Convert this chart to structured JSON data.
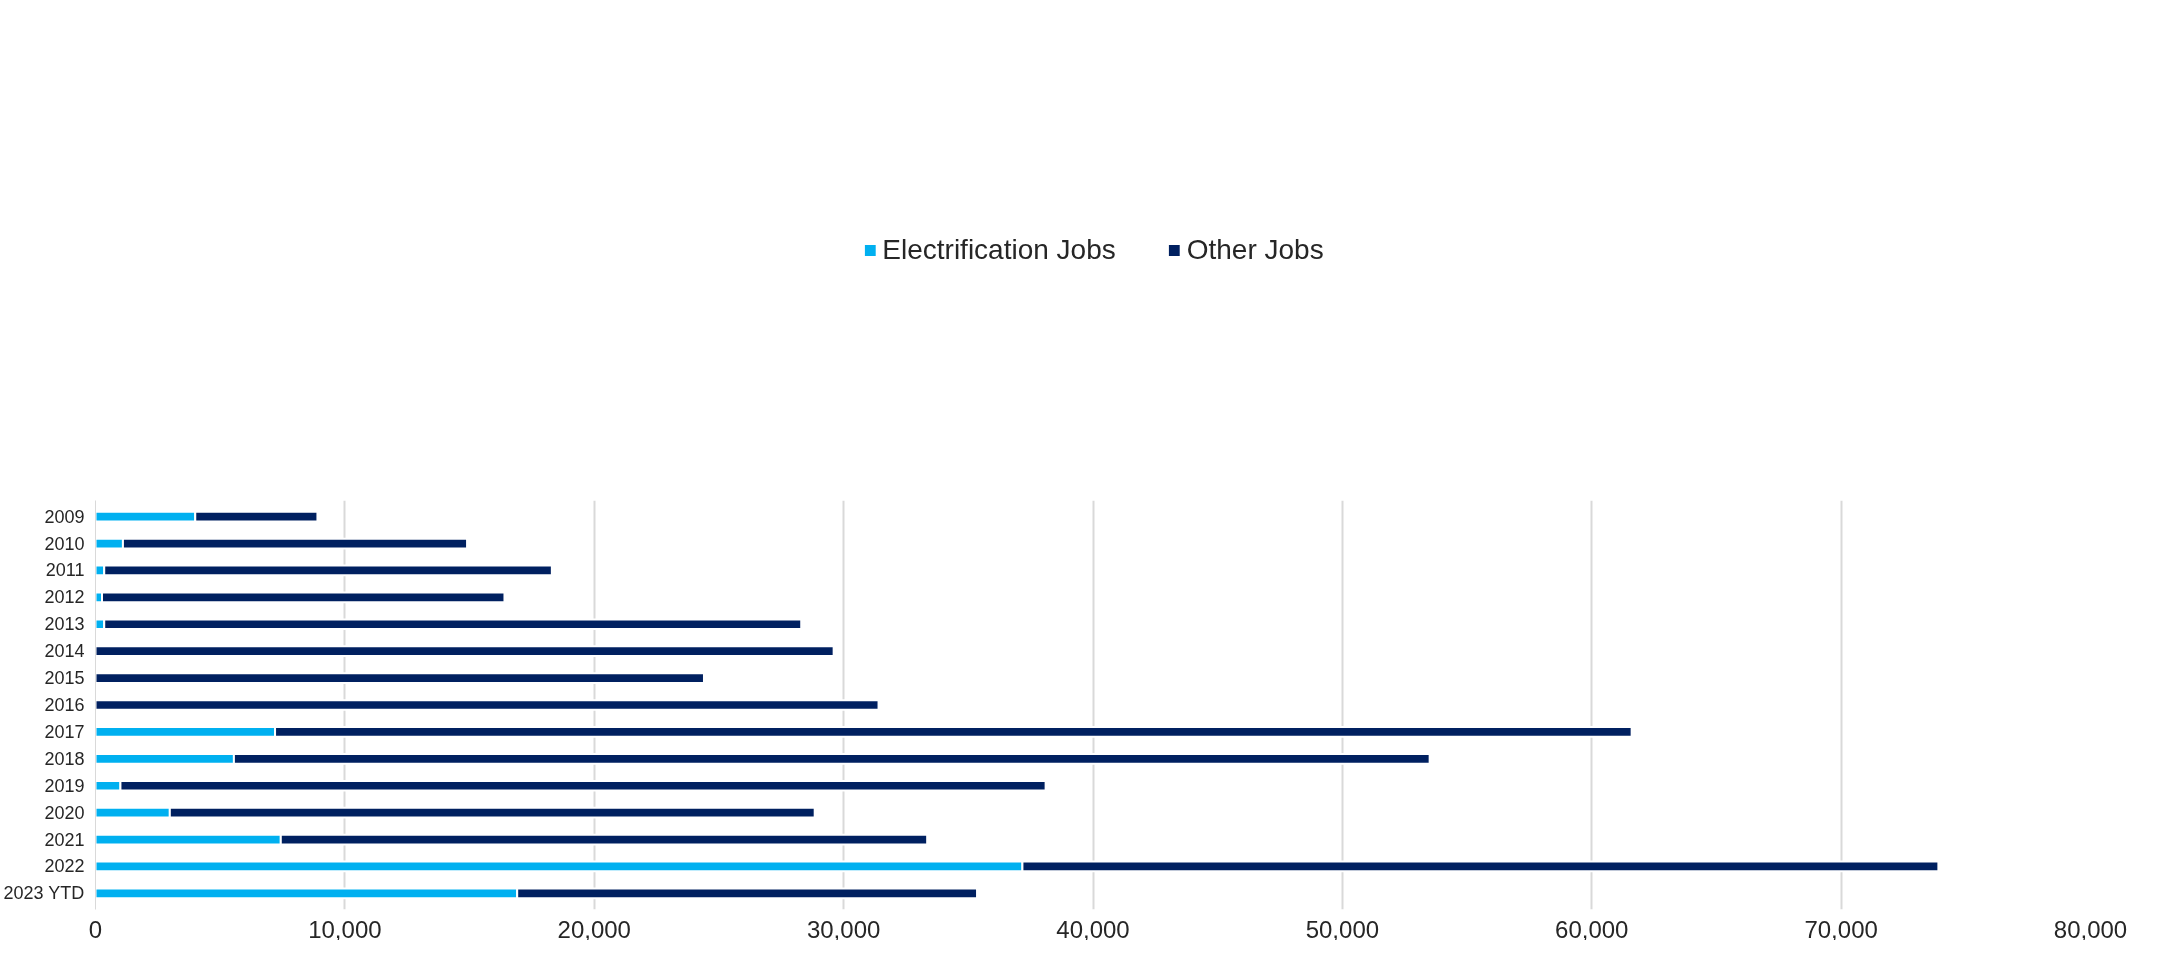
{
  "chart_data": {
    "type": "bar",
    "orientation": "horizontal",
    "stacked": true,
    "categories": [
      "2009",
      "2010",
      "2011",
      "2012",
      "2013",
      "2014",
      "2015",
      "2016",
      "2017",
      "2018",
      "2019",
      "2020",
      "2021",
      "2022",
      "2023 YTD"
    ],
    "series": [
      {
        "name": "Electrification Jobs",
        "color": "#00b0f0",
        "values": [
          4000,
          1100,
          350,
          260,
          350,
          0,
          0,
          0,
          7200,
          5550,
          1000,
          2980,
          7430,
          37170,
          16910
        ]
      },
      {
        "name": "Other Jobs",
        "color": "#002060",
        "values": [
          4900,
          13800,
          17950,
          16140,
          27950,
          29600,
          24400,
          31400,
          54400,
          47950,
          37100,
          25860,
          25920,
          36730,
          18440
        ]
      }
    ],
    "xlim": [
      0,
      80000
    ],
    "xticks": [
      {
        "value": 0,
        "label": "0"
      },
      {
        "value": 10000,
        "label": "10,000"
      },
      {
        "value": 20000,
        "label": "20,000"
      },
      {
        "value": 30000,
        "label": "30,000"
      },
      {
        "value": 40000,
        "label": "40,000"
      },
      {
        "value": 50000,
        "label": "50,000"
      },
      {
        "value": 60000,
        "label": "60,000"
      },
      {
        "value": 70000,
        "label": "70,000"
      },
      {
        "value": 80000,
        "label": "80,000"
      }
    ],
    "grid": "x",
    "legend": "top"
  }
}
